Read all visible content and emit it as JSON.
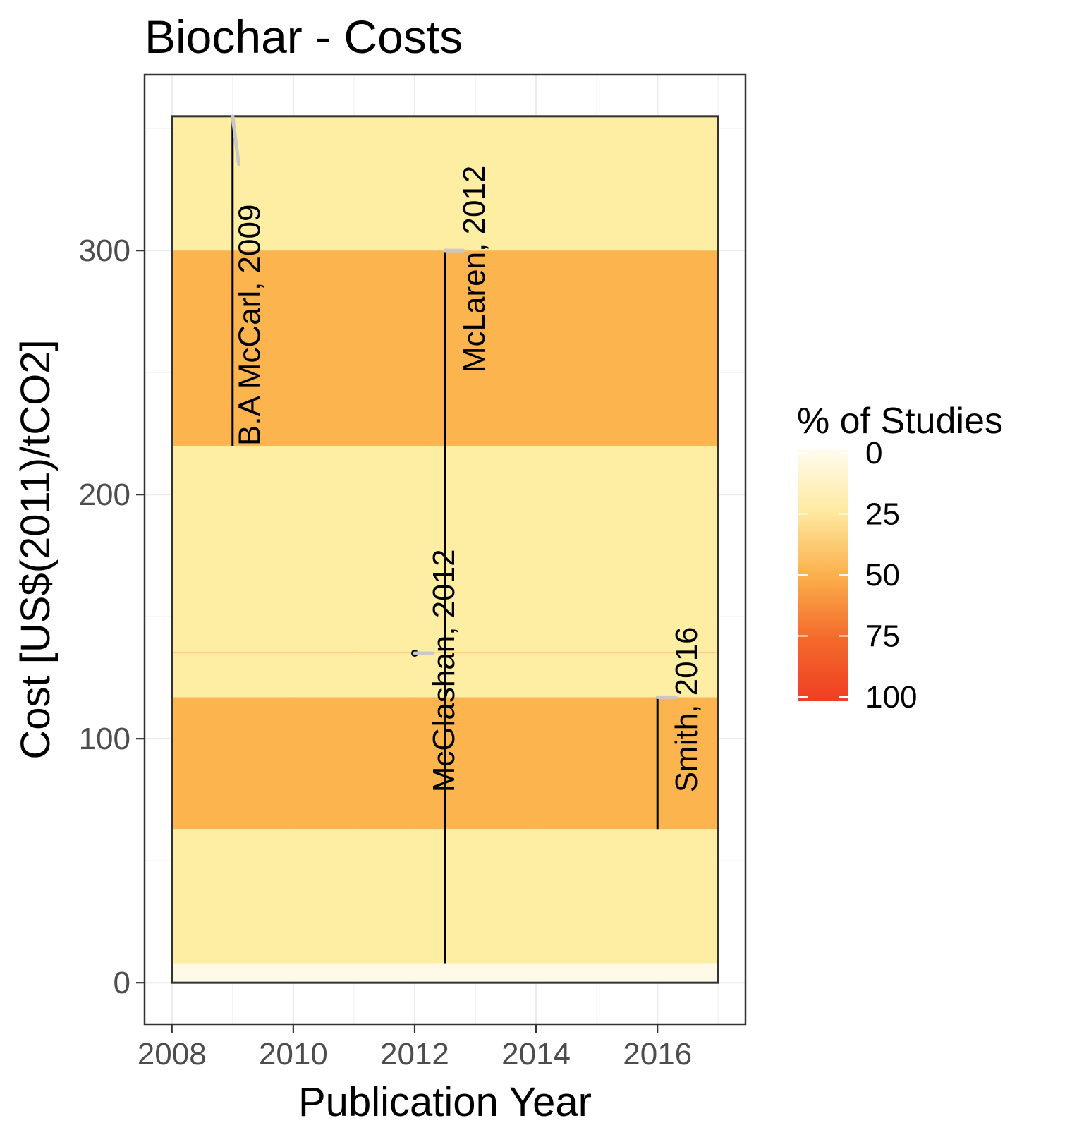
{
  "chart_data": {
    "type": "heatmap",
    "title": "Biochar - Costs",
    "xlabel": "Publication Year",
    "ylabel": "Cost [US$(2011)/tCO2]",
    "xlim": [
      2007.55,
      2017.45
    ],
    "ylim": [
      -17,
      372
    ],
    "x_ticks": [
      2008,
      2010,
      2012,
      2014,
      2016
    ],
    "x_tick_labels": [
      "2008",
      "2010",
      "2012",
      "2014",
      "2016"
    ],
    "y_ticks": [
      0,
      100,
      200,
      300
    ],
    "y_tick_labels": [
      "0",
      "100",
      "200",
      "300"
    ],
    "grid": true,
    "panel_range": {
      "x": [
        2008,
        2017
      ],
      "y": [
        0,
        355
      ]
    },
    "bands": [
      {
        "y0": 0,
        "y1": 8,
        "percent": 0,
        "color": "#fff9e8"
      },
      {
        "y0": 8,
        "y1": 63,
        "percent": 25,
        "color": "#feeea3"
      },
      {
        "y0": 63,
        "y1": 117,
        "percent": 50,
        "color": "#fbb44e"
      },
      {
        "y0": 117,
        "y1": 135,
        "percent": 25,
        "color": "#feeea3"
      },
      {
        "y0": 135,
        "y1": 135.5,
        "percent": 50,
        "color": "#fbb44e"
      },
      {
        "y0": 135.5,
        "y1": 220,
        "percent": 25,
        "color": "#feeea3"
      },
      {
        "y0": 220,
        "y1": 300,
        "percent": 50,
        "color": "#fbb44e"
      },
      {
        "y0": 300,
        "y1": 355,
        "percent": 25,
        "color": "#feeea3"
      }
    ],
    "studies": [
      {
        "label": "B.A McCarl, 2009",
        "x": 2009,
        "ymin": 220,
        "ymax": 355,
        "label_x": 2009.45,
        "label_y": 220
      },
      {
        "label": "McLaren, 2012",
        "x": 2012.5,
        "ymin": 8,
        "ymax": 300,
        "label_x": 2013.15,
        "label_y": 250
      },
      {
        "label": "McGlashan, 2012",
        "x": 2012,
        "ymin": 135,
        "ymax": 135,
        "label_x": 2012.65,
        "label_y": 78
      },
      {
        "label": "Smith, 2016",
        "x": 2016,
        "ymin": 63,
        "ymax": 117,
        "label_x": 2016.65,
        "label_y": 78
      }
    ],
    "legend": {
      "title": "% of Studies",
      "placement": "right",
      "breaks": [
        0,
        25,
        50,
        75,
        100
      ],
      "labels": [
        "0",
        "25",
        "50",
        "75",
        "100"
      ],
      "gradient": [
        "#fffcf0",
        "#fee9a0",
        "#fbb04c",
        "#f36a2a",
        "#ef3e24"
      ]
    }
  }
}
